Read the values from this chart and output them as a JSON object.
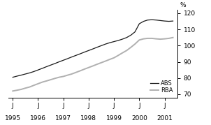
{
  "title": "",
  "ylabel_right": "%",
  "ylim": [
    68,
    122
  ],
  "yticks": [
    70,
    80,
    90,
    100,
    110,
    120
  ],
  "xlim": [
    1994.83,
    2001.5
  ],
  "xtick_years": [
    1995,
    1996,
    1997,
    1998,
    1999,
    2000,
    2001
  ],
  "background_color": "#ffffff",
  "line_color_abs": "#1a1a1a",
  "line_color_rba": "#b0b0b0",
  "legend_labels": [
    "ABS",
    "RBA"
  ],
  "abs_x": [
    1995.0,
    1995.17,
    1995.33,
    1995.5,
    1995.67,
    1995.83,
    1996.0,
    1996.17,
    1996.33,
    1996.5,
    1996.67,
    1996.83,
    1997.0,
    1997.17,
    1997.33,
    1997.5,
    1997.67,
    1997.83,
    1998.0,
    1998.17,
    1998.33,
    1998.5,
    1998.67,
    1998.83,
    1999.0,
    1999.17,
    1999.33,
    1999.5,
    1999.67,
    1999.83,
    2000.0,
    2000.17,
    2000.33,
    2000.5,
    2000.67,
    2000.83,
    2001.0,
    2001.17,
    2001.33
  ],
  "abs_y": [
    80.5,
    81.2,
    81.8,
    82.5,
    83.2,
    84.0,
    85.0,
    86.0,
    87.0,
    88.0,
    89.0,
    90.0,
    91.0,
    92.0,
    93.0,
    94.0,
    95.0,
    96.0,
    97.0,
    98.0,
    99.0,
    100.0,
    101.0,
    101.8,
    102.5,
    103.2,
    104.0,
    105.0,
    106.5,
    108.5,
    113.5,
    115.0,
    115.8,
    116.0,
    115.8,
    115.5,
    115.2,
    115.0,
    115.2
  ],
  "rba_x": [
    1995.0,
    1995.17,
    1995.33,
    1995.5,
    1995.67,
    1995.83,
    1996.0,
    1996.17,
    1996.33,
    1996.5,
    1996.67,
    1996.83,
    1997.0,
    1997.17,
    1997.33,
    1997.5,
    1997.67,
    1997.83,
    1998.0,
    1998.17,
    1998.33,
    1998.5,
    1998.67,
    1998.83,
    1999.0,
    1999.17,
    1999.33,
    1999.5,
    1999.67,
    1999.83,
    2000.0,
    2000.17,
    2000.33,
    2000.5,
    2000.67,
    2000.83,
    2001.0,
    2001.17,
    2001.33
  ],
  "rba_y": [
    72.0,
    72.5,
    73.0,
    73.8,
    74.5,
    75.5,
    76.5,
    77.5,
    78.2,
    79.0,
    79.8,
    80.5,
    81.0,
    81.8,
    82.5,
    83.5,
    84.5,
    85.5,
    86.5,
    87.5,
    88.5,
    89.5,
    90.5,
    91.5,
    92.5,
    94.0,
    95.5,
    97.0,
    99.0,
    101.0,
    103.5,
    104.2,
    104.5,
    104.5,
    104.2,
    104.0,
    104.2,
    104.5,
    105.0
  ]
}
